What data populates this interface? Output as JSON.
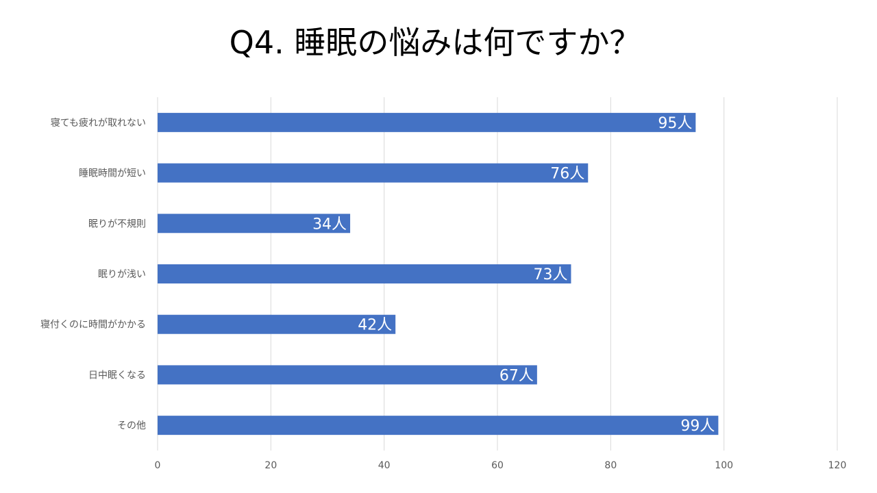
{
  "chart_data": {
    "type": "bar",
    "orientation": "horizontal",
    "title": "Q4. 睡眠の悩みは何ですか？",
    "categories": [
      "寝ても疲れが取れない",
      "睡眠時間が短い",
      "眠りが不規則",
      "眠りが浅い",
      "寝付くのに時間がかかる",
      "日中眠くなる",
      "その他"
    ],
    "values": [
      95,
      76,
      34,
      73,
      42,
      67,
      99
    ],
    "data_labels": [
      "95人",
      "76人",
      "34人",
      "73人",
      "42人",
      "67人",
      "99人"
    ],
    "xlim": [
      0,
      120
    ],
    "xticks": [
      0,
      20,
      40,
      60,
      80,
      100,
      120
    ],
    "grid": "vertical",
    "legend": "none",
    "bar_color": "#4472C4",
    "grid_color": "#D9D9D9",
    "label_color": "#595959"
  }
}
